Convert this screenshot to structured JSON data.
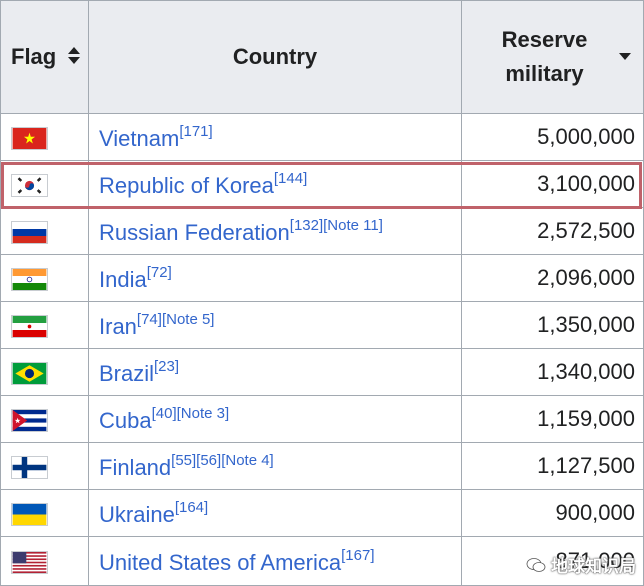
{
  "header": {
    "flag": "Flag",
    "country": "Country",
    "reserve_line1": "Reserve",
    "reserve_line2": "military"
  },
  "rows": [
    {
      "flag_icon": "vietnam-flag-icon",
      "country": "Vietnam",
      "refs": "[171]",
      "reserve": "5,000,000"
    },
    {
      "flag_icon": "south-korea-flag-icon",
      "country": "Republic of Korea",
      "refs": "[144]",
      "reserve": "3,100,000",
      "highlighted": true
    },
    {
      "flag_icon": "russia-flag-icon",
      "country": "Russian Federation",
      "refs": "[132][Note 11]",
      "reserve": "2,572,500"
    },
    {
      "flag_icon": "india-flag-icon",
      "country": "India",
      "refs": "[72]",
      "reserve": "2,096,000"
    },
    {
      "flag_icon": "iran-flag-icon",
      "country": "Iran",
      "refs": "[74][Note 5]",
      "reserve": "1,350,000"
    },
    {
      "flag_icon": "brazil-flag-icon",
      "country": "Brazil",
      "refs": "[23]",
      "reserve": "1,340,000"
    },
    {
      "flag_icon": "cuba-flag-icon",
      "country": "Cuba",
      "refs": "[40][Note 3]",
      "reserve": "1,159,000"
    },
    {
      "flag_icon": "finland-flag-icon",
      "country": "Finland",
      "refs": "[55][56][Note 4]",
      "reserve": "1,127,500"
    },
    {
      "flag_icon": "ukraine-flag-icon",
      "country": "Ukraine",
      "refs": "[164]",
      "reserve": "900,000"
    },
    {
      "flag_icon": "usa-flag-icon",
      "country": "United States of America",
      "refs": "[167]",
      "reserve": "871,000"
    }
  ],
  "watermark": {
    "text": "地球知识局",
    "icon": "wechat-icon"
  },
  "colors": {
    "highlight_border": "#c0626a",
    "link": "#3366cc",
    "header_bg": "#eaecf0"
  }
}
